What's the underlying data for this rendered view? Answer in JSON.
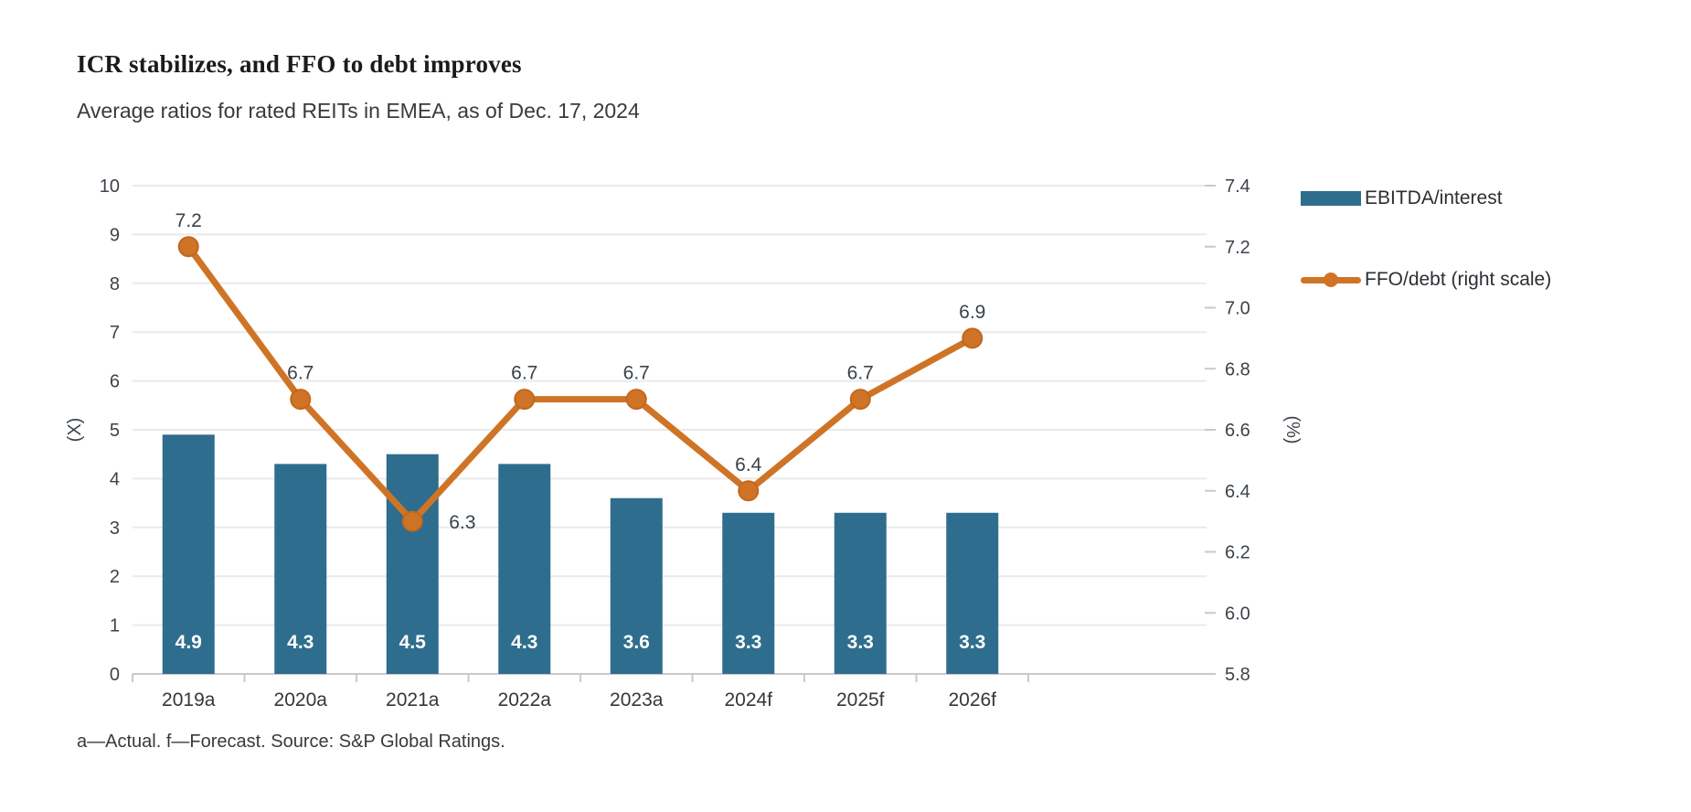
{
  "page": {
    "title": "ICR stabilizes, and FFO to debt improves",
    "subtitle": "Average ratios for rated REITs in EMEA, as of Dec. 17, 2024",
    "footnote": "a—Actual. f—Forecast. Source: S&P Global Ratings."
  },
  "chart_data": {
    "type": "combo-bar-line",
    "categories": [
      "2019a",
      "2020a",
      "2021a",
      "2022a",
      "2023a",
      "2024f",
      "2025f",
      "2026f"
    ],
    "series": [
      {
        "name": "EBITDA/interest",
        "type": "bar",
        "axis": "left",
        "color": "#2f6d8e",
        "values": [
          4.9,
          4.3,
          4.5,
          4.3,
          3.6,
          3.3,
          3.3,
          3.3
        ],
        "value_labels": [
          "4.9",
          "4.3",
          "4.5",
          "4.3",
          "3.6",
          "3.3",
          "3.3",
          "3.3"
        ]
      },
      {
        "name": "FFO/debt (right scale)",
        "type": "line",
        "axis": "right",
        "color": "#cf7426",
        "marker_stroke": "#c1681c",
        "values": [
          7.2,
          6.7,
          6.3,
          6.7,
          6.7,
          6.4,
          6.7,
          6.9
        ],
        "value_labels": [
          "7.2",
          "6.7",
          "6.3",
          "6.7",
          "6.7",
          "6.4",
          "6.7",
          "6.9"
        ],
        "value_label_positions": [
          "above",
          "above",
          "right",
          "above",
          "above",
          "above",
          "above",
          "above"
        ]
      }
    ],
    "left_axis": {
      "label": "(X)",
      "min": 0,
      "max": 10,
      "ticks": [
        0,
        1,
        2,
        3,
        4,
        5,
        6,
        7,
        8,
        9,
        10
      ]
    },
    "right_axis": {
      "label": "(%)",
      "min": 5.8,
      "max": 7.4,
      "ticks": [
        "5.8",
        "6.0",
        "6.2",
        "6.4",
        "6.6",
        "6.8",
        "7.0",
        "7.2",
        "7.4"
      ]
    },
    "grid": true,
    "legend_position": "right"
  },
  "colors": {
    "grid": "#eaeaea",
    "axis_line": "#c9c9c9",
    "tick_label": "#3c434a",
    "x_label": "#33383d",
    "data_label": "#3a4249",
    "bar_label": "#ffffff"
  }
}
